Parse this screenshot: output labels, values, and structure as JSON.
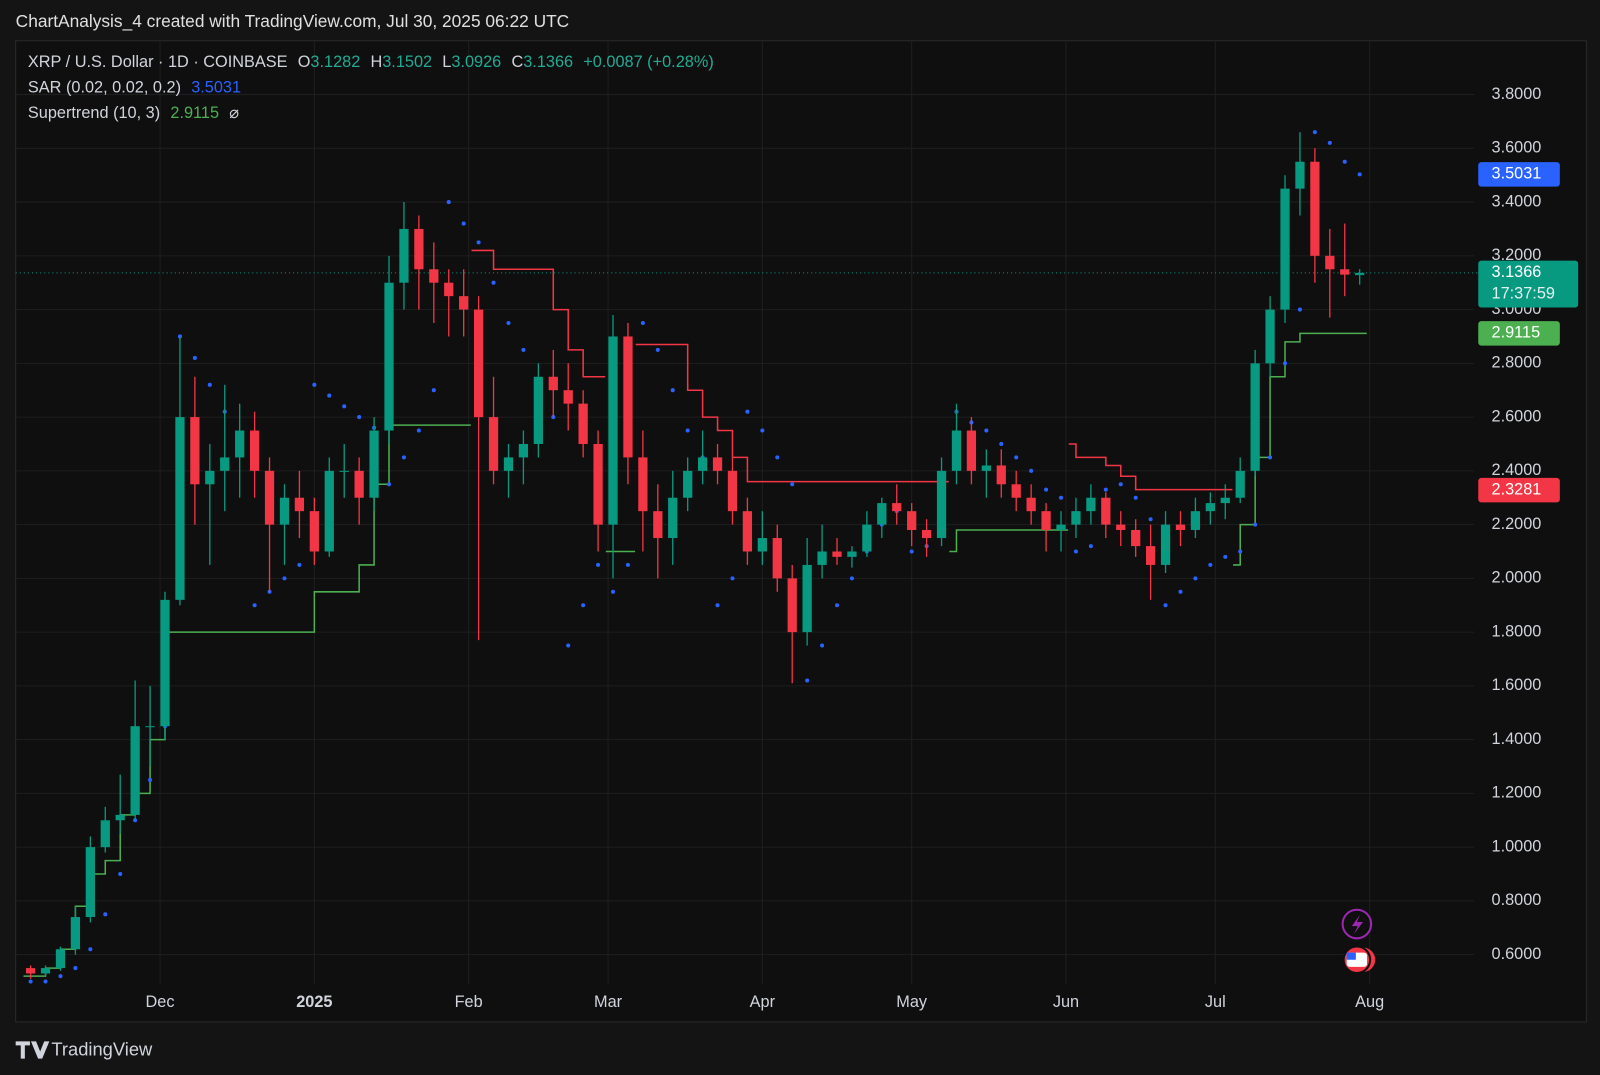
{
  "chart_data": {
    "type": "candlestick",
    "header": "ChartAnalysis_4 created with TradingView.com, Jul 30, 2025 06:22 UTC",
    "symbol": "XRP / U.S. Dollar · 1D · COINBASE",
    "quote": {
      "labels": [
        "O",
        "H",
        "L",
        "C"
      ],
      "values": [
        3.1282,
        3.1502,
        3.0926,
        3.1366
      ],
      "change": "+0.0087 (+0.28%)"
    },
    "colors": {
      "up": "#089981",
      "down": "#f23645"
    },
    "x": [
      3,
      6,
      9,
      12,
      15,
      18,
      21,
      24,
      27,
      30,
      33,
      36,
      39,
      42,
      45,
      48,
      51,
      54,
      57,
      60,
      63,
      66,
      69,
      72,
      75,
      78,
      81,
      84,
      87,
      90,
      93,
      96,
      99,
      102,
      105,
      108,
      111,
      114,
      117,
      120,
      123,
      126,
      129,
      132,
      135,
      138,
      141,
      144,
      147,
      150,
      153,
      156,
      159,
      162,
      165,
      168,
      171,
      174,
      177,
      180,
      183,
      186,
      189,
      192,
      195,
      198,
      201,
      204,
      207,
      210,
      213,
      216,
      219,
      222,
      225,
      228,
      231,
      234,
      237,
      240,
      243,
      246,
      249,
      252,
      255,
      258,
      261,
      264,
      267,
      270
    ],
    "ohlc": [
      [
        0.55,
        0.56,
        0.51,
        0.53
      ],
      [
        0.53,
        0.56,
        0.52,
        0.55
      ],
      [
        0.55,
        0.63,
        0.54,
        0.62
      ],
      [
        0.62,
        0.78,
        0.6,
        0.74
      ],
      [
        0.74,
        1.04,
        0.72,
        1.0
      ],
      [
        1.0,
        1.15,
        0.98,
        1.1
      ],
      [
        1.1,
        1.27,
        1.05,
        1.12
      ],
      [
        1.12,
        1.62,
        1.1,
        1.45
      ],
      [
        1.45,
        1.6,
        1.3,
        1.45
      ],
      [
        1.45,
        1.95,
        1.4,
        1.92
      ],
      [
        1.92,
        2.9,
        1.9,
        2.6
      ],
      [
        2.6,
        2.75,
        2.2,
        2.35
      ],
      [
        2.35,
        2.5,
        2.05,
        2.4
      ],
      [
        2.4,
        2.72,
        2.25,
        2.45
      ],
      [
        2.45,
        2.65,
        2.3,
        2.55
      ],
      [
        2.55,
        2.62,
        2.3,
        2.4
      ],
      [
        2.4,
        2.45,
        1.95,
        2.2
      ],
      [
        2.2,
        2.35,
        2.05,
        2.3
      ],
      [
        2.3,
        2.4,
        2.15,
        2.25
      ],
      [
        2.25,
        2.3,
        2.05,
        2.1
      ],
      [
        2.1,
        2.45,
        2.08,
        2.4
      ],
      [
        2.4,
        2.5,
        2.3,
        2.4
      ],
      [
        2.4,
        2.45,
        2.2,
        2.3
      ],
      [
        2.3,
        2.6,
        2.25,
        2.55
      ],
      [
        2.55,
        3.2,
        2.5,
        3.1
      ],
      [
        3.1,
        3.4,
        3.0,
        3.3
      ],
      [
        3.3,
        3.35,
        3.0,
        3.15
      ],
      [
        3.15,
        3.25,
        2.95,
        3.1
      ],
      [
        3.1,
        3.15,
        2.9,
        3.05
      ],
      [
        3.05,
        3.15,
        2.9,
        3.0
      ],
      [
        3.0,
        3.05,
        1.77,
        2.6
      ],
      [
        2.6,
        2.75,
        2.35,
        2.4
      ],
      [
        2.4,
        2.5,
        2.3,
        2.45
      ],
      [
        2.45,
        2.55,
        2.35,
        2.5
      ],
      [
        2.5,
        2.8,
        2.45,
        2.75
      ],
      [
        2.75,
        2.85,
        2.6,
        2.7
      ],
      [
        2.7,
        2.8,
        2.55,
        2.65
      ],
      [
        2.65,
        2.7,
        2.45,
        2.5
      ],
      [
        2.5,
        2.55,
        2.1,
        2.2
      ],
      [
        2.2,
        2.98,
        2.0,
        2.9
      ],
      [
        2.9,
        2.95,
        2.35,
        2.45
      ],
      [
        2.45,
        2.55,
        2.1,
        2.25
      ],
      [
        2.25,
        2.35,
        2.0,
        2.15
      ],
      [
        2.15,
        2.4,
        2.05,
        2.3
      ],
      [
        2.3,
        2.45,
        2.25,
        2.4
      ],
      [
        2.4,
        2.55,
        2.35,
        2.45
      ],
      [
        2.45,
        2.5,
        2.35,
        2.4
      ],
      [
        2.4,
        2.45,
        2.2,
        2.25
      ],
      [
        2.25,
        2.3,
        2.05,
        2.1
      ],
      [
        2.1,
        2.25,
        2.05,
        2.15
      ],
      [
        2.15,
        2.2,
        1.95,
        2.0
      ],
      [
        2.0,
        2.05,
        1.61,
        1.8
      ],
      [
        1.8,
        2.15,
        1.75,
        2.05
      ],
      [
        2.05,
        2.2,
        2.0,
        2.1
      ],
      [
        2.1,
        2.15,
        2.05,
        2.08
      ],
      [
        2.08,
        2.12,
        2.04,
        2.1
      ],
      [
        2.1,
        2.25,
        2.08,
        2.2
      ],
      [
        2.2,
        2.3,
        2.15,
        2.28
      ],
      [
        2.28,
        2.35,
        2.2,
        2.25
      ],
      [
        2.25,
        2.28,
        2.12,
        2.18
      ],
      [
        2.18,
        2.22,
        2.08,
        2.15
      ],
      [
        2.15,
        2.45,
        2.12,
        2.4
      ],
      [
        2.4,
        2.65,
        2.35,
        2.55
      ],
      [
        2.55,
        2.6,
        2.35,
        2.4
      ],
      [
        2.4,
        2.48,
        2.3,
        2.42
      ],
      [
        2.42,
        2.48,
        2.3,
        2.35
      ],
      [
        2.35,
        2.4,
        2.25,
        2.3
      ],
      [
        2.3,
        2.35,
        2.2,
        2.25
      ],
      [
        2.25,
        2.28,
        2.1,
        2.18
      ],
      [
        2.18,
        2.25,
        2.1,
        2.2
      ],
      [
        2.2,
        2.3,
        2.15,
        2.25
      ],
      [
        2.25,
        2.35,
        2.2,
        2.3
      ],
      [
        2.3,
        2.32,
        2.15,
        2.2
      ],
      [
        2.2,
        2.25,
        2.12,
        2.18
      ],
      [
        2.18,
        2.22,
        2.08,
        2.12
      ],
      [
        2.12,
        2.2,
        1.92,
        2.05
      ],
      [
        2.05,
        2.25,
        2.02,
        2.2
      ],
      [
        2.2,
        2.25,
        2.12,
        2.18
      ],
      [
        2.18,
        2.3,
        2.15,
        2.25
      ],
      [
        2.25,
        2.32,
        2.2,
        2.28
      ],
      [
        2.28,
        2.35,
        2.22,
        2.3
      ],
      [
        2.3,
        2.45,
        2.28,
        2.4
      ],
      [
        2.4,
        2.85,
        2.38,
        2.8
      ],
      [
        2.8,
        3.05,
        2.75,
        3.0
      ],
      [
        3.0,
        3.5,
        2.95,
        3.45
      ],
      [
        3.45,
        3.66,
        3.35,
        3.55
      ],
      [
        3.55,
        3.6,
        3.1,
        3.2
      ],
      [
        3.2,
        3.3,
        2.97,
        3.15
      ],
      [
        3.15,
        3.32,
        3.05,
        3.13
      ],
      [
        3.1282,
        3.1502,
        3.0926,
        3.1366
      ]
    ],
    "sar": {
      "name": "SAR (0.02, 0.02, 0.2)",
      "value": 3.5031,
      "color": "#2962ff",
      "values": [
        0.5,
        0.5,
        0.52,
        0.55,
        0.62,
        0.75,
        0.9,
        1.1,
        1.25,
        1.45,
        2.9,
        2.82,
        2.72,
        2.62,
        2.52,
        1.9,
        1.95,
        2.0,
        2.05,
        2.72,
        2.68,
        2.64,
        2.6,
        2.56,
        2.35,
        2.45,
        2.55,
        2.7,
        3.4,
        3.32,
        3.25,
        3.1,
        2.95,
        2.85,
        2.7,
        2.6,
        1.75,
        1.9,
        2.05,
        1.95,
        2.05,
        2.95,
        2.85,
        2.7,
        2.55,
        2.45,
        1.9,
        2.0,
        2.62,
        2.55,
        2.45,
        2.35,
        1.62,
        1.75,
        1.9,
        2.0,
        2.1,
        2.2,
        2.25,
        2.1,
        2.12,
        2.2,
        2.62,
        2.58,
        2.55,
        2.5,
        2.45,
        2.4,
        2.33,
        2.3,
        2.1,
        2.12,
        2.33,
        2.35,
        2.3,
        2.22,
        1.9,
        1.95,
        2.0,
        2.05,
        2.08,
        2.1,
        2.2,
        2.45,
        2.8,
        3.0,
        3.66,
        3.62,
        3.55,
        3.5031
      ]
    },
    "supertrend": {
      "name": "Supertrend (10, 3)",
      "value": 2.9115,
      "symbol": "⌀",
      "series": [
        {
          "color": "#4caf50",
          "values": [
            0.52,
            0.52,
            0.55,
            0.62,
            0.78,
            0.9,
            0.95,
            1.12,
            1.2,
            1.4,
            1.8,
            1.8,
            1.8,
            1.8,
            1.8,
            1.8,
            1.8,
            1.8,
            1.8,
            1.8,
            1.95,
            1.95,
            1.95,
            2.05,
            2.35,
            2.57,
            2.57,
            2.57,
            2.57,
            2.57,
            null,
            null,
            null,
            null,
            null,
            null,
            null,
            null,
            null,
            2.1,
            2.1,
            null,
            null,
            null,
            null,
            null,
            null,
            null,
            null,
            null,
            null,
            null,
            null,
            null,
            null,
            null,
            null,
            null,
            null,
            null,
            null,
            null,
            2.1,
            2.18,
            2.18,
            2.18,
            2.18,
            2.18,
            2.18,
            2.18,
            null,
            null,
            null,
            null,
            null,
            null,
            null,
            null,
            null,
            null,
            null,
            2.05,
            2.2,
            2.45,
            2.75,
            2.88,
            2.9115,
            2.9115,
            2.9115,
            2.9115
          ]
        },
        {
          "color": "#f23645",
          "values": [
            null,
            null,
            null,
            null,
            null,
            null,
            null,
            null,
            null,
            null,
            null,
            null,
            null,
            null,
            null,
            null,
            null,
            null,
            null,
            null,
            null,
            null,
            null,
            null,
            null,
            null,
            null,
            null,
            null,
            null,
            3.22,
            3.22,
            3.15,
            3.15,
            3.15,
            3.15,
            3.0,
            2.85,
            2.75,
            null,
            null,
            2.87,
            2.87,
            2.87,
            2.87,
            2.7,
            2.6,
            2.55,
            2.45,
            2.36,
            2.36,
            2.36,
            2.36,
            2.36,
            2.36,
            2.36,
            2.36,
            2.36,
            2.36,
            2.36,
            2.36,
            2.36,
            null,
            null,
            null,
            null,
            null,
            null,
            null,
            null,
            2.5,
            2.45,
            2.45,
            2.42,
            2.38,
            2.33,
            2.33,
            2.33,
            2.33,
            2.33,
            2.33,
            null,
            null,
            null,
            null,
            null,
            null,
            null,
            null,
            null
          ]
        }
      ]
    },
    "price_labels": [
      {
        "value": 3.5031,
        "color": "#2962ff"
      },
      {
        "value": 3.1366,
        "color": "#089981",
        "countdown": "17:37:59"
      },
      {
        "value": 2.9115,
        "color": "#4caf50"
      },
      {
        "value": 2.3281,
        "color": "#f23645"
      }
    ],
    "xlim": [
      0,
      293
    ],
    "xticks": [
      {
        "value": 29,
        "label": "Dec"
      },
      {
        "value": 60,
        "label": "2025"
      },
      {
        "value": 91,
        "label": "Feb"
      },
      {
        "value": 119,
        "label": "Mar"
      },
      {
        "value": 150,
        "label": "Apr"
      },
      {
        "value": 180,
        "label": "May"
      },
      {
        "value": 211,
        "label": "Jun"
      },
      {
        "value": 241,
        "label": "Jul"
      },
      {
        "value": 272,
        "label": "Aug"
      }
    ],
    "ylim": [
      0.49,
      4.0
    ],
    "yticks": [
      {
        "value": 0.6,
        "label": "0.6000"
      },
      {
        "value": 0.8,
        "label": "0.8000"
      },
      {
        "value": 1.0,
        "label": "1.0000"
      },
      {
        "value": 1.2,
        "label": "1.2000"
      },
      {
        "value": 1.4,
        "label": "1.4000"
      },
      {
        "value": 1.6,
        "label": "1.6000"
      },
      {
        "value": 1.8,
        "label": "1.8000"
      },
      {
        "value": 2.0,
        "label": "2.0000"
      },
      {
        "value": 2.2,
        "label": "2.2000"
      },
      {
        "value": 2.4,
        "label": "2.4000"
      },
      {
        "value": 2.6,
        "label": "2.6000"
      },
      {
        "value": 2.8,
        "label": "2.8000"
      },
      {
        "value": 3.0,
        "label": "3.0000"
      },
      {
        "value": 3.2,
        "label": "3.2000"
      },
      {
        "value": 3.4,
        "label": "3.4000"
      },
      {
        "value": 3.6,
        "label": "3.6000"
      },
      {
        "value": 3.8,
        "label": "3.8000"
      }
    ],
    "grid": true,
    "brand": "TradingView"
  }
}
